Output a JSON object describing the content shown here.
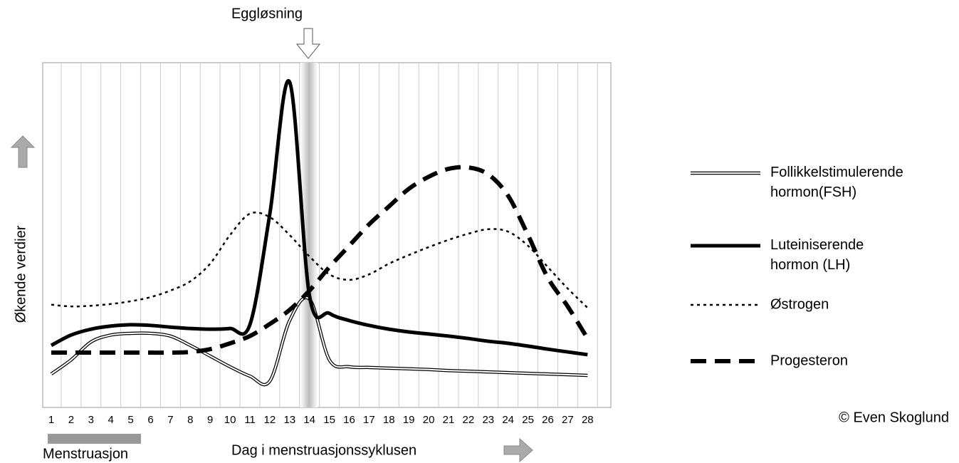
{
  "chart_data": {
    "type": "line",
    "title": "Eggløsning",
    "ylabel": "Økende verdier",
    "xlabel": "Dag i menstruasjonssyklusen",
    "annotation": "Menstruasjon",
    "credit": "© Even Skoglund",
    "categories": [
      1,
      2,
      3,
      4,
      5,
      6,
      7,
      8,
      9,
      10,
      11,
      12,
      13,
      14,
      15,
      16,
      17,
      18,
      19,
      20,
      21,
      22,
      23,
      24,
      25,
      26,
      27,
      28
    ],
    "ylim": [
      0,
      100
    ],
    "grid": true,
    "series": [
      {
        "name": "Follikkelstimulerende hormon(FSH)",
        "color": "#000000",
        "style": "double",
        "values": [
          9.7,
          13.8,
          19,
          21,
          21.5,
          21.5,
          20.7,
          18,
          14.9,
          11.8,
          9.1,
          7.6,
          25.2,
          31.4,
          13.8,
          11.8,
          11.6,
          11.4,
          11.2,
          11,
          10.7,
          10.5,
          10.3,
          10.1,
          9.9,
          9.7,
          9.5,
          9.3
        ]
      },
      {
        "name": "Luteiniserende hormon (LH)",
        "color": "#000000",
        "style": "solid",
        "values": [
          18,
          21,
          22.7,
          23.6,
          24,
          23.8,
          23.3,
          22.9,
          22.7,
          22.9,
          24,
          56,
          94.4,
          32.4,
          27.3,
          25.2,
          23.8,
          22.7,
          21.9,
          21.3,
          20.7,
          20,
          19.2,
          18.6,
          17.8,
          16.9,
          16.1,
          15.3
        ]
      },
      {
        "name": "Østrogen",
        "color": "#000000",
        "style": "dotted",
        "values": [
          29.8,
          29.3,
          29.5,
          30,
          30.8,
          32,
          33.9,
          36.6,
          41.7,
          50,
          56.2,
          55.2,
          50,
          43.8,
          38.6,
          37,
          38.6,
          41.7,
          44.2,
          46.5,
          48.6,
          50.4,
          51.7,
          51,
          46.9,
          40.7,
          34.5,
          28.9
        ]
      },
      {
        "name": "Progesteron",
        "color": "#000000",
        "style": "dashed",
        "values": [
          15.9,
          15.9,
          15.9,
          15.9,
          15.9,
          15.9,
          15.9,
          16.1,
          16.9,
          18.6,
          20.7,
          24.2,
          28.3,
          33.9,
          40.7,
          46.9,
          53.1,
          58.3,
          63.4,
          66.9,
          69.2,
          69.6,
          67.6,
          61.4,
          50,
          37.6,
          29.3,
          20
        ]
      }
    ]
  }
}
